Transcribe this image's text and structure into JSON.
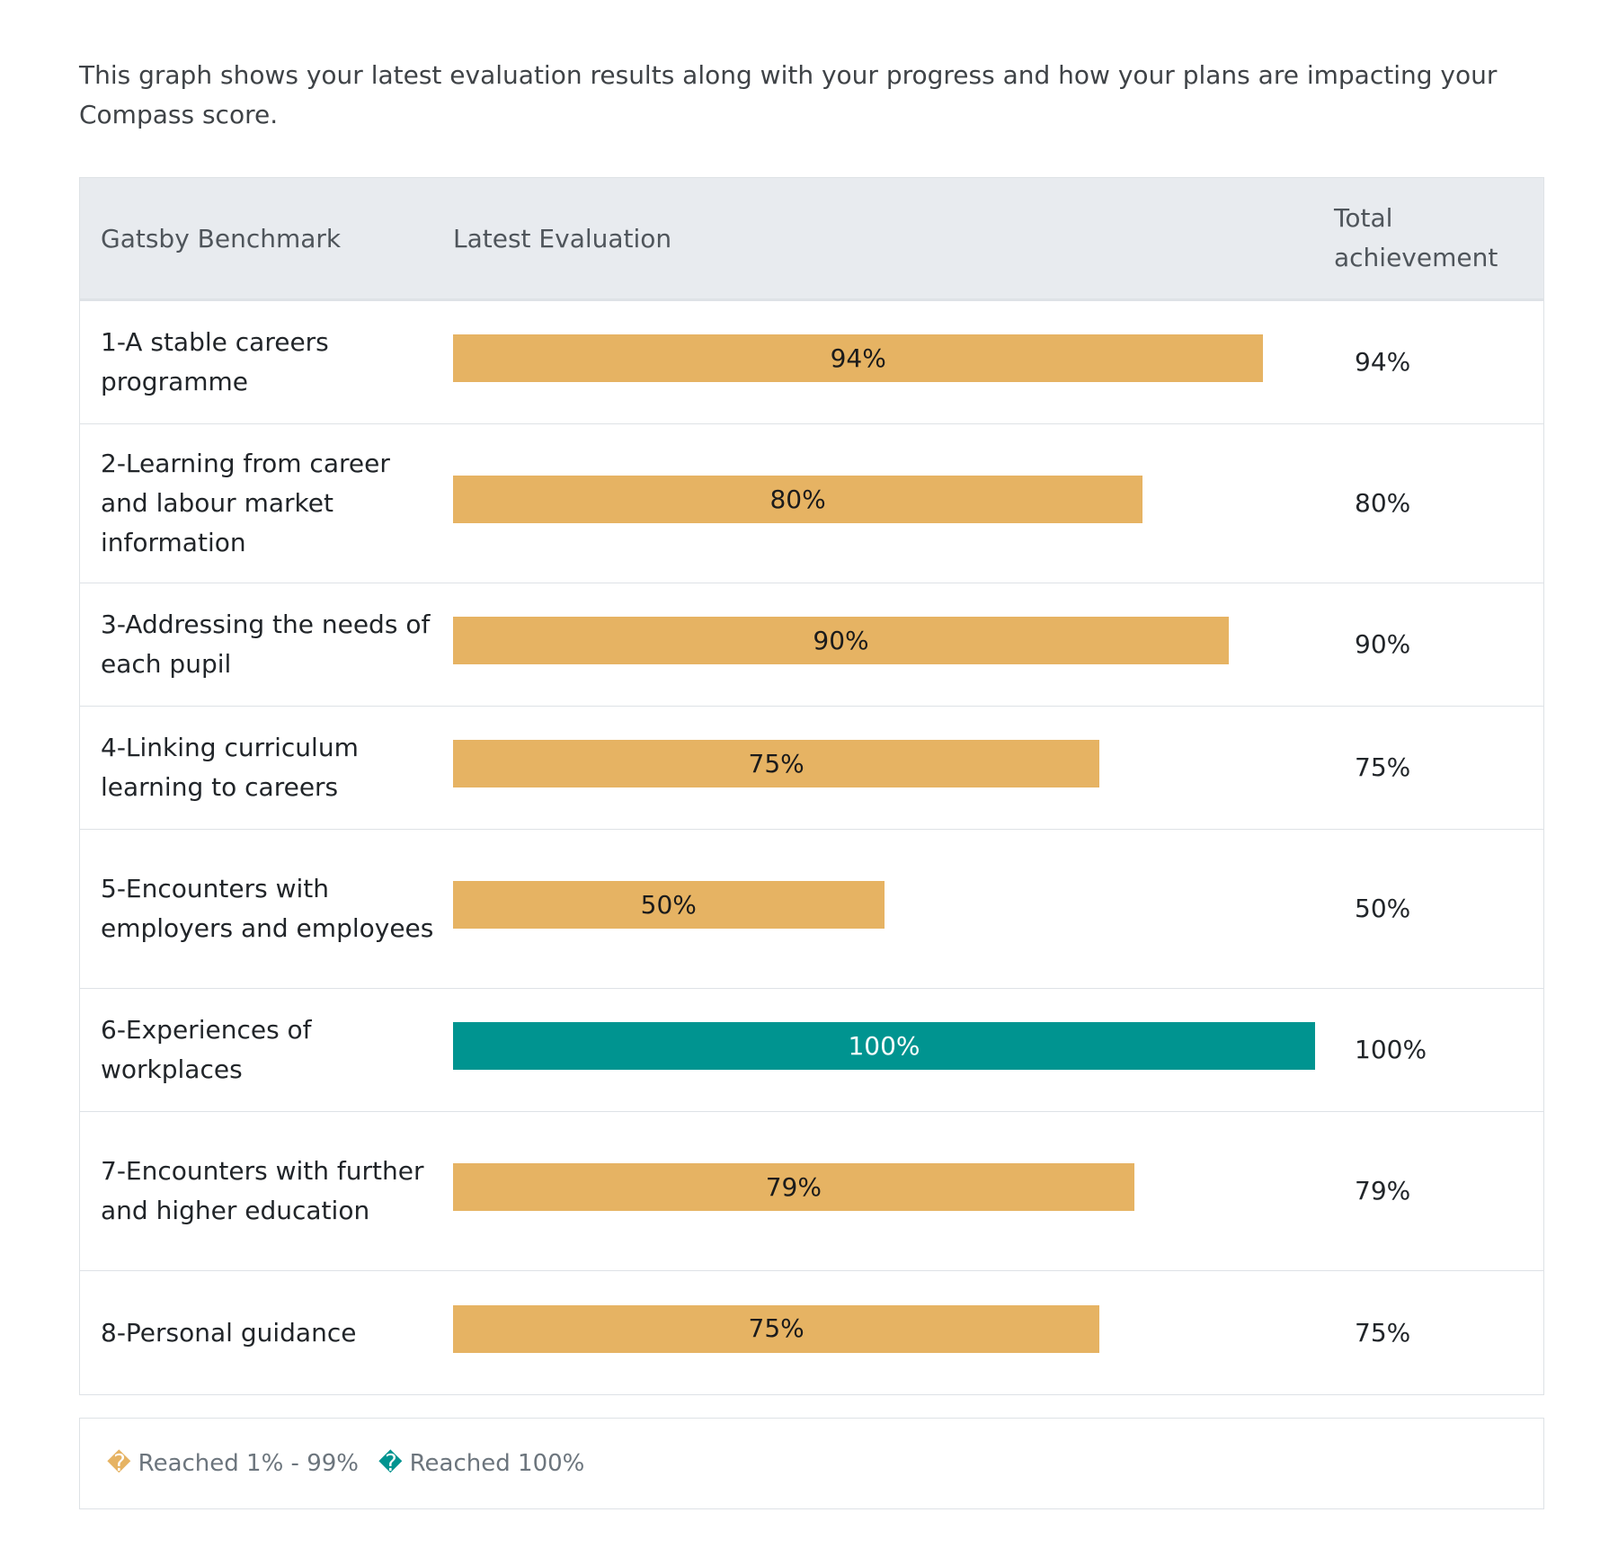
{
  "intro_text": "This graph shows your latest evaluation results along with your progress and how your plans are impacting your Compass score.",
  "table": {
    "col_benchmark": "Gatsby Benchmark",
    "col_latest": "Latest Evaluation",
    "col_total": "Total achievement"
  },
  "colors": {
    "partial": "#e6b363",
    "complete": "#009490"
  },
  "legend": [
    {
      "glyph": "�",
      "label": "Reached 1% - 99%",
      "color": "#e6b363"
    },
    {
      "glyph": "�",
      "label": "Reached 100%",
      "color": "#009490"
    }
  ],
  "chart_data": {
    "type": "bar",
    "orientation": "horizontal",
    "xlim": [
      0,
      100
    ],
    "categories": [
      "1-A stable careers programme",
      "2-Learning from career and labour market information",
      "3-Addressing the needs of each pupil",
      "4-Linking curriculum learning to careers",
      "5-Encounters with employers and employees",
      "6-Experiences of workplaces",
      "7-Encounters with further and higher education",
      "8-Personal guidance"
    ],
    "values": [
      94,
      80,
      90,
      75,
      50,
      100,
      79,
      75
    ],
    "bar_labels": [
      "94%",
      "80%",
      "90%",
      "75%",
      "50%",
      "100%",
      "79%",
      "75%"
    ],
    "total_achievement": [
      "94%",
      "80%",
      "90%",
      "75%",
      "50%",
      "100%",
      "79%",
      "75%"
    ]
  }
}
